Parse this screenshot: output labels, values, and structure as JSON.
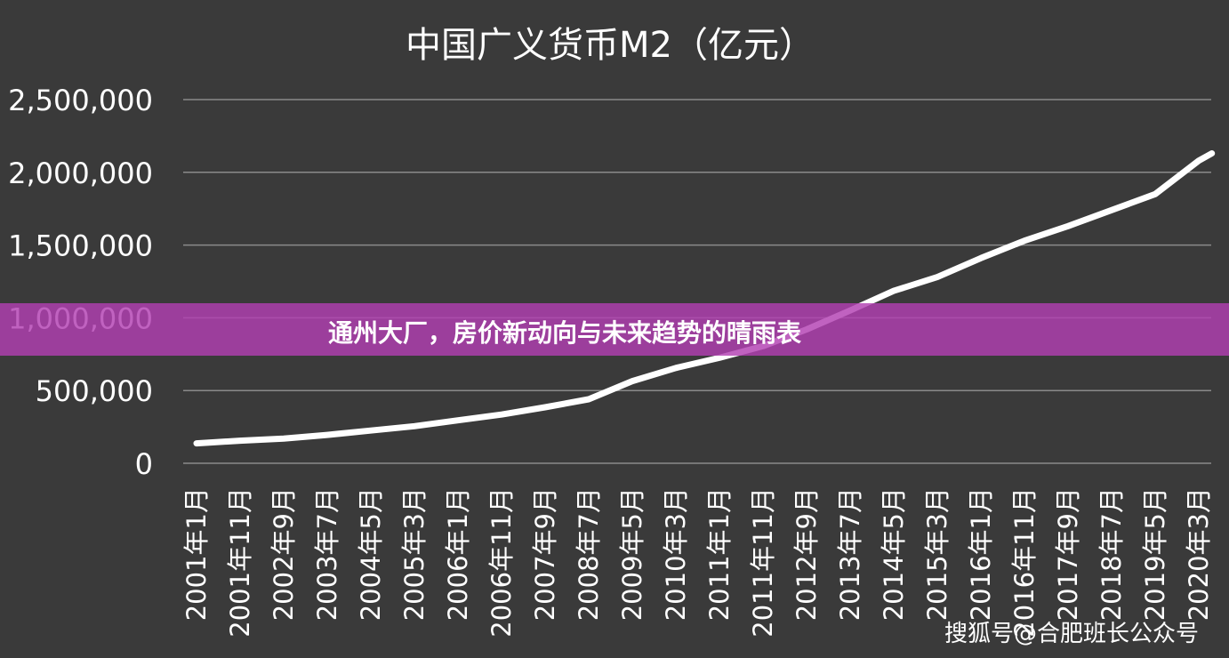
{
  "banner": {
    "title": "通州大厂，房价新动向与未来趋势的晴雨表",
    "color": "#b240b2"
  },
  "watermark": {
    "text": "搜狐号@合肥班长公众号"
  },
  "colors": {
    "background": "#3a3a3a",
    "grid": "#8a8a8a",
    "text": "#ffffff",
    "line": "#ffffff"
  },
  "chart_data": {
    "type": "line",
    "title": "中国广义货币M2（亿元）",
    "xlabel": "",
    "ylabel": "",
    "ylim": [
      0,
      2500000
    ],
    "grid": true,
    "legend": "none",
    "y_ticks": [
      "0",
      "500,000",
      "1,000,000",
      "1,500,000",
      "2,000,000",
      "2,500,000"
    ],
    "y_tick_values": [
      0,
      500000,
      1000000,
      1500000,
      2000000,
      2500000
    ],
    "x_ticks": [
      "2001年1月",
      "2001年11月",
      "2002年9月",
      "2003年7月",
      "2004年5月",
      "2005年3月",
      "2006年1月",
      "2006年11月",
      "2007年9月",
      "2008年7月",
      "2009年5月",
      "2010年3月",
      "2011年1月",
      "2011年11月",
      "2012年9月",
      "2013年7月",
      "2014年5月",
      "2015年3月",
      "2016年1月",
      "2016年11月",
      "2017年9月",
      "2018年7月",
      "2019年5月",
      "2020年3月"
    ],
    "series": [
      {
        "x": [
          "2001年1月",
          "2001年11月",
          "2002年9月",
          "2003年7月",
          "2004年5月",
          "2005年3月",
          "2006年1月",
          "2006年11月",
          "2007年9月",
          "2008年7月",
          "2009年5月",
          "2010年3月",
          "2011年1月",
          "2011年11月",
          "2012年9月",
          "2013年7月",
          "2014年5月",
          "2015年3月",
          "2016年1月",
          "2016年11月",
          "2017年9月",
          "2018年7月",
          "2019年5月",
          "2020年3月",
          "2020年6月"
        ],
        "values": [
          137000,
          155000,
          170000,
          195000,
          225000,
          255000,
          295000,
          335000,
          385000,
          440000,
          565000,
          655000,
          725000,
          805000,
          920000,
          1050000,
          1185000,
          1280000,
          1410000,
          1530000,
          1630000,
          1740000,
          1850000,
          2080000,
          2130000
        ]
      }
    ]
  }
}
